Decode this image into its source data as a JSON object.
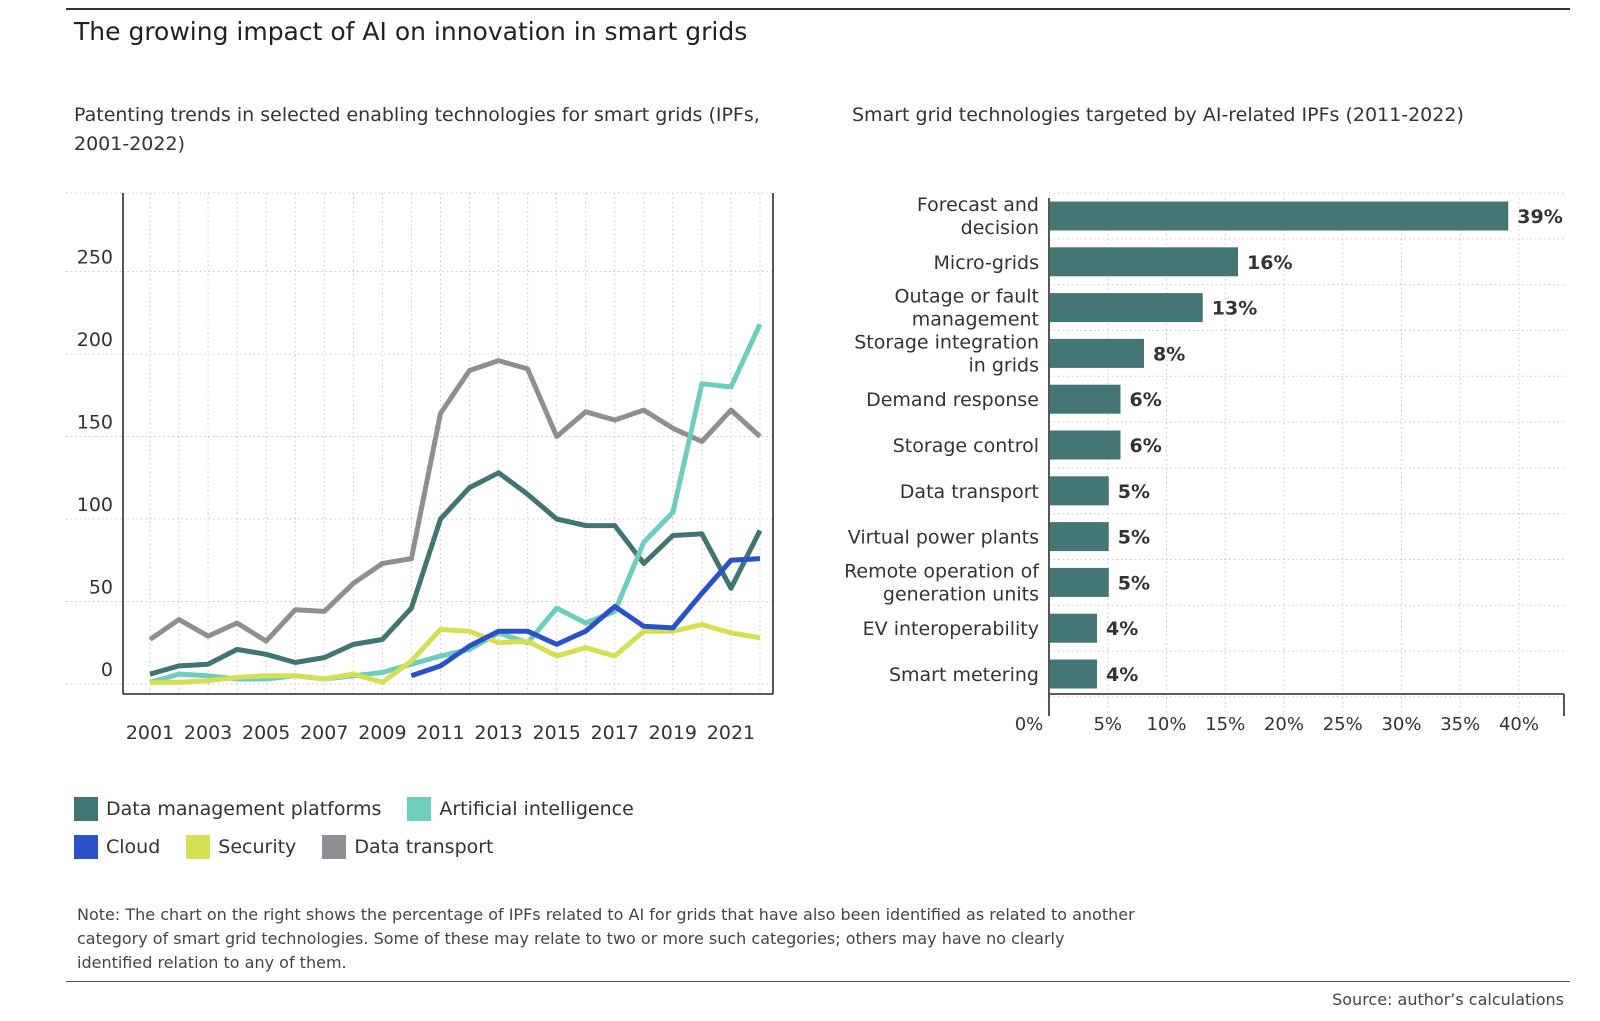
{
  "title": "The growing impact of AI on innovation in smart grids",
  "colors": {
    "data_management": "#427472",
    "ai": "#6ecdbd",
    "cloud": "#2a52c6",
    "security": "#d4e053",
    "data_transport": "#8f8f93",
    "bar": "#437674"
  },
  "chart_data": [
    {
      "type": "line",
      "title": "Patenting trends in selected enabling technologies for smart grids (IPFs, 2001-2022)",
      "xlabel": "",
      "ylabel": "",
      "x": [
        2001,
        2002,
        2003,
        2004,
        2005,
        2006,
        2007,
        2008,
        2009,
        2010,
        2011,
        2012,
        2013,
        2014,
        2015,
        2016,
        2017,
        2018,
        2019,
        2020,
        2021,
        2022
      ],
      "x_tick_labels": [
        "2001",
        "2003",
        "2005",
        "2007",
        "2009",
        "2011",
        "2013",
        "2015",
        "2017",
        "2019",
        "2021"
      ],
      "y_tick_labels": [
        "0",
        "50",
        "100",
        "150",
        "200",
        "250"
      ],
      "ylim": [
        0,
        300
      ],
      "grid": true,
      "series": [
        {
          "name": "Data transport",
          "color_key": "data_transport",
          "values": [
            27,
            39,
            29,
            37,
            26,
            45,
            44,
            61,
            73,
            76,
            164,
            190,
            196,
            191,
            150,
            165,
            160,
            166,
            155,
            147,
            166,
            150
          ]
        },
        {
          "name": "Data management platforms",
          "color_key": "data_management",
          "values": [
            6,
            11,
            12,
            21,
            18,
            13,
            16,
            24,
            27,
            46,
            100,
            119,
            128,
            115,
            100,
            96,
            96,
            73,
            90,
            91,
            58,
            93
          ]
        },
        {
          "name": "Artificial intelligence",
          "color_key": "ai",
          "values": [
            1,
            6,
            5,
            3,
            3,
            5,
            3,
            5,
            7,
            12,
            17,
            21,
            31,
            25,
            46,
            37,
            44,
            86,
            104,
            182,
            180,
            218
          ]
        },
        {
          "name": "Security",
          "color_key": "security",
          "values": [
            1,
            1,
            2,
            4,
            5,
            5,
            3,
            6,
            1,
            14,
            33,
            32,
            25,
            26,
            17,
            22,
            17,
            32,
            32,
            36,
            31,
            28
          ]
        },
        {
          "name": "Cloud",
          "color_key": "cloud",
          "values": [
            null,
            null,
            null,
            null,
            null,
            null,
            null,
            null,
            null,
            5,
            11,
            23,
            32,
            32,
            24,
            32,
            47,
            35,
            34,
            55,
            75,
            76
          ]
        }
      ]
    },
    {
      "type": "bar",
      "orientation": "horizontal",
      "title": "Smart grid technologies targeted by AI-related IPFs (2011-2022)",
      "categories": [
        [
          "Forecast and",
          "decision"
        ],
        [
          "Micro-grids"
        ],
        [
          "Outage or fault",
          "management"
        ],
        [
          "Storage integration",
          "in grids"
        ],
        [
          "Demand response"
        ],
        [
          "Storage control"
        ],
        [
          "Data transport"
        ],
        [
          "Virtual power plants"
        ],
        [
          "Remote operation of",
          "generation units"
        ],
        [
          "EV interoperability"
        ],
        [
          "Smart metering"
        ]
      ],
      "values": [
        39,
        16,
        13,
        8,
        6,
        6,
        5,
        5,
        5,
        4,
        4
      ],
      "value_labels": [
        "39%",
        "16%",
        "13%",
        "8%",
        "6%",
        "6%",
        "5%",
        "5%",
        "5%",
        "4%",
        "4%"
      ],
      "x_tick_labels": [
        "0%",
        "5%",
        "10%",
        "15%",
        "20%",
        "25%",
        "30%",
        "35%",
        "40%"
      ],
      "xlim": [
        0,
        44
      ],
      "grid": true
    }
  ],
  "legend": {
    "row1": [
      {
        "label": "Data management platforms",
        "color_key": "data_management"
      },
      {
        "label": "Artificial intelligence",
        "color_key": "ai"
      }
    ],
    "row2": [
      {
        "label": "Cloud",
        "color_key": "cloud"
      },
      {
        "label": "Security",
        "color_key": "security"
      },
      {
        "label": "Data transport",
        "color_key": "data_transport"
      }
    ]
  },
  "note": "Note: The chart on the right shows the percentage of IPFs related to AI for grids that have also been identified as related to another category of smart grid technologies. Some of these may relate to two or more such categories; others may have no clearly identified relation to any of them.",
  "source": "Source: author’s calculations"
}
